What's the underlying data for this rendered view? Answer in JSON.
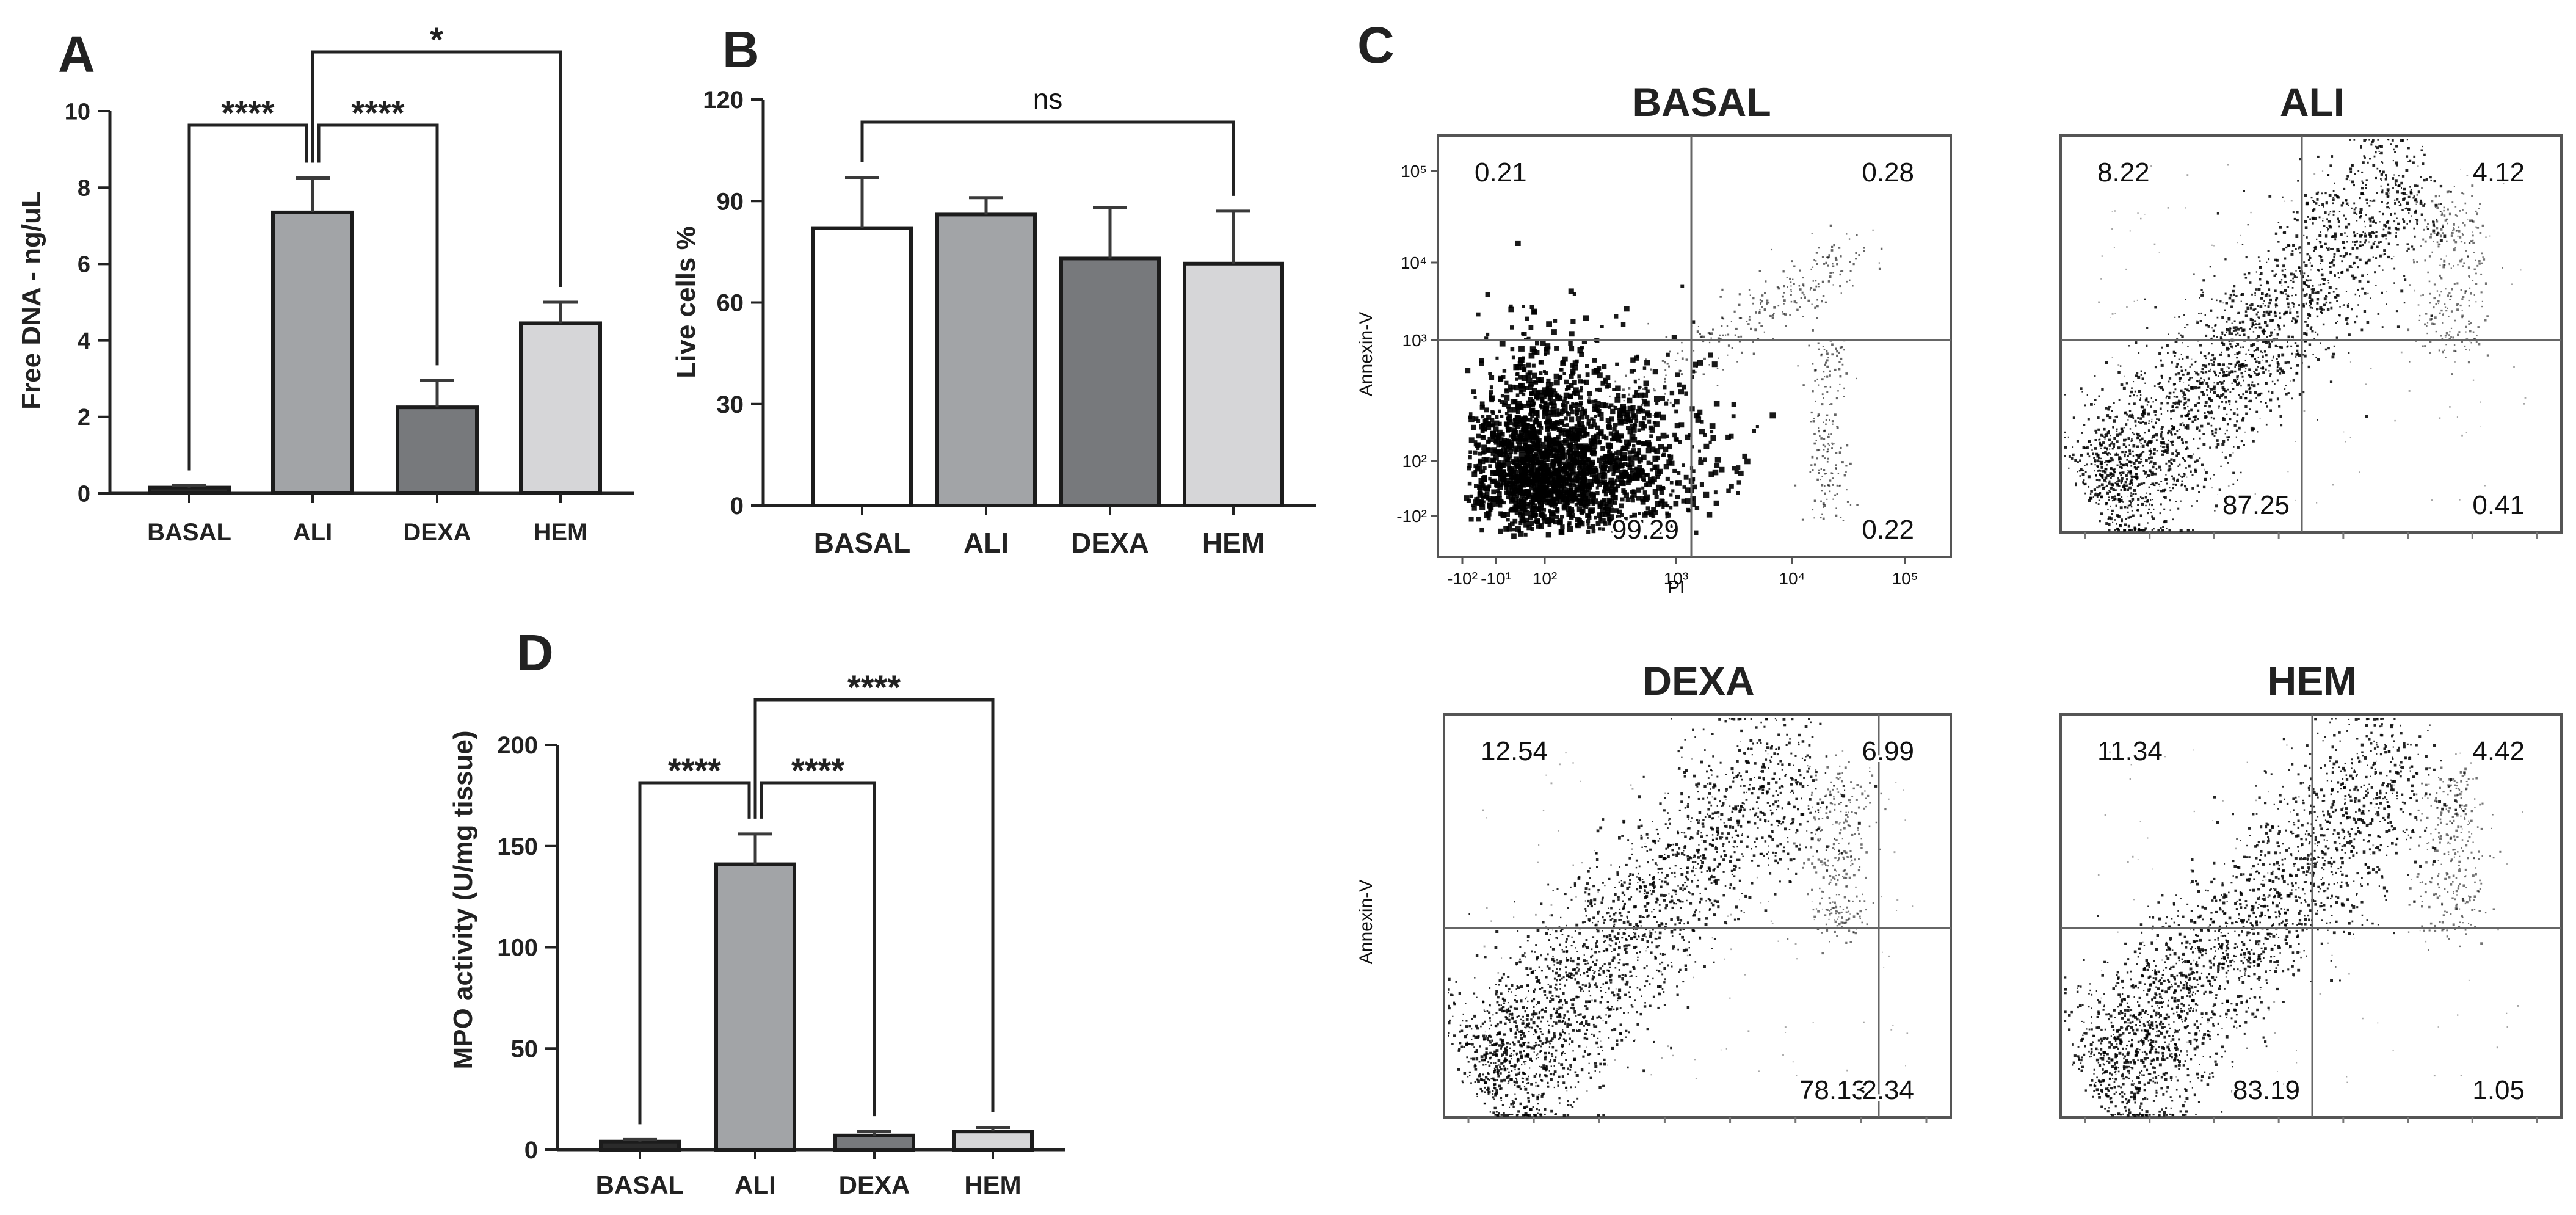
{
  "chart_data": [
    {
      "panel": "A",
      "type": "bar",
      "ylabel": "Free DNA - ng/uL",
      "categories": [
        "BASAL",
        "ALI",
        "DEXA",
        "HEM"
      ],
      "values": [
        0.15,
        7.35,
        2.25,
        4.45
      ],
      "errors": [
        0.05,
        0.9,
        0.7,
        0.55
      ],
      "colors": [
        "#2b2b2b",
        "#a2a4a7",
        "#77797c",
        "#d6d6d8"
      ],
      "ylim": [
        0,
        10
      ],
      "yticks": [
        "0",
        "2",
        "4",
        "6",
        "8",
        "10"
      ],
      "significance": [
        {
          "from": "BASAL",
          "to": "ALI",
          "label": "****"
        },
        {
          "from": "ALI",
          "to": "DEXA",
          "label": "****"
        },
        {
          "from": "ALI",
          "to": "HEM",
          "label": "*"
        }
      ]
    },
    {
      "panel": "B",
      "type": "bar",
      "ylabel": "Live cells %",
      "categories": [
        "BASAL",
        "ALI",
        "DEXA",
        "HEM"
      ],
      "values": [
        82,
        86,
        73,
        71.5
      ],
      "errors": [
        15,
        5,
        15,
        15.5
      ],
      "colors": [
        "#ffffff",
        "#a2a4a7",
        "#77797c",
        "#d6d6d8"
      ],
      "ylim": [
        0,
        120
      ],
      "yticks": [
        "0",
        "30",
        "60",
        "90",
        "120"
      ],
      "significance": [
        {
          "from": "BASAL",
          "to": "HEM",
          "label": "ns"
        }
      ]
    },
    {
      "panel": "D",
      "type": "bar",
      "ylabel": "MPO activity (U/mg tissue)",
      "categories": [
        "BASAL",
        "ALI",
        "DEXA",
        "HEM"
      ],
      "values": [
        4,
        141,
        7,
        9
      ],
      "errors": [
        1,
        15,
        2,
        2
      ],
      "colors": [
        "#2b2b2b",
        "#a2a4a7",
        "#77797c",
        "#d6d6d8"
      ],
      "ylim": [
        0,
        200
      ],
      "yticks": [
        "0",
        "50",
        "100",
        "150",
        "200"
      ],
      "significance": [
        {
          "from": "BASAL",
          "to": "ALI",
          "label": "****"
        },
        {
          "from": "ALI",
          "to": "DEXA",
          "label": "****"
        },
        {
          "from": "ALI",
          "to": "HEM",
          "label": "****"
        }
      ]
    },
    {
      "panel": "C",
      "type": "scatter",
      "xlabel": "PI",
      "ylabel": "Annexin-V",
      "xtick_labels": [
        "-10²",
        "-10¹",
        "10²",
        "10³",
        "10⁴",
        "10⁵"
      ],
      "ytick_labels": [
        "-10²",
        "10²",
        "10³",
        "10⁴",
        "10⁵"
      ],
      "plots": [
        {
          "title": "BASAL",
          "quadrants": {
            "upper_left": "0.21",
            "upper_right": "0.28",
            "lower_left": "99.29",
            "lower_right": "0.22"
          }
        },
        {
          "title": "ALI",
          "quadrants": {
            "upper_left": "8.22",
            "upper_right": "4.12",
            "lower_left": "87.25",
            "lower_right": "0.41"
          }
        },
        {
          "title": "DEXA",
          "quadrants": {
            "upper_left": "12.54",
            "upper_right": "6.99",
            "lower_left": "78.13",
            "lower_right": "2.34"
          }
        },
        {
          "title": "HEM",
          "quadrants": {
            "upper_left": "11.34",
            "upper_right": "4.42",
            "lower_left": "83.19",
            "lower_right": "1.05"
          }
        }
      ]
    }
  ]
}
